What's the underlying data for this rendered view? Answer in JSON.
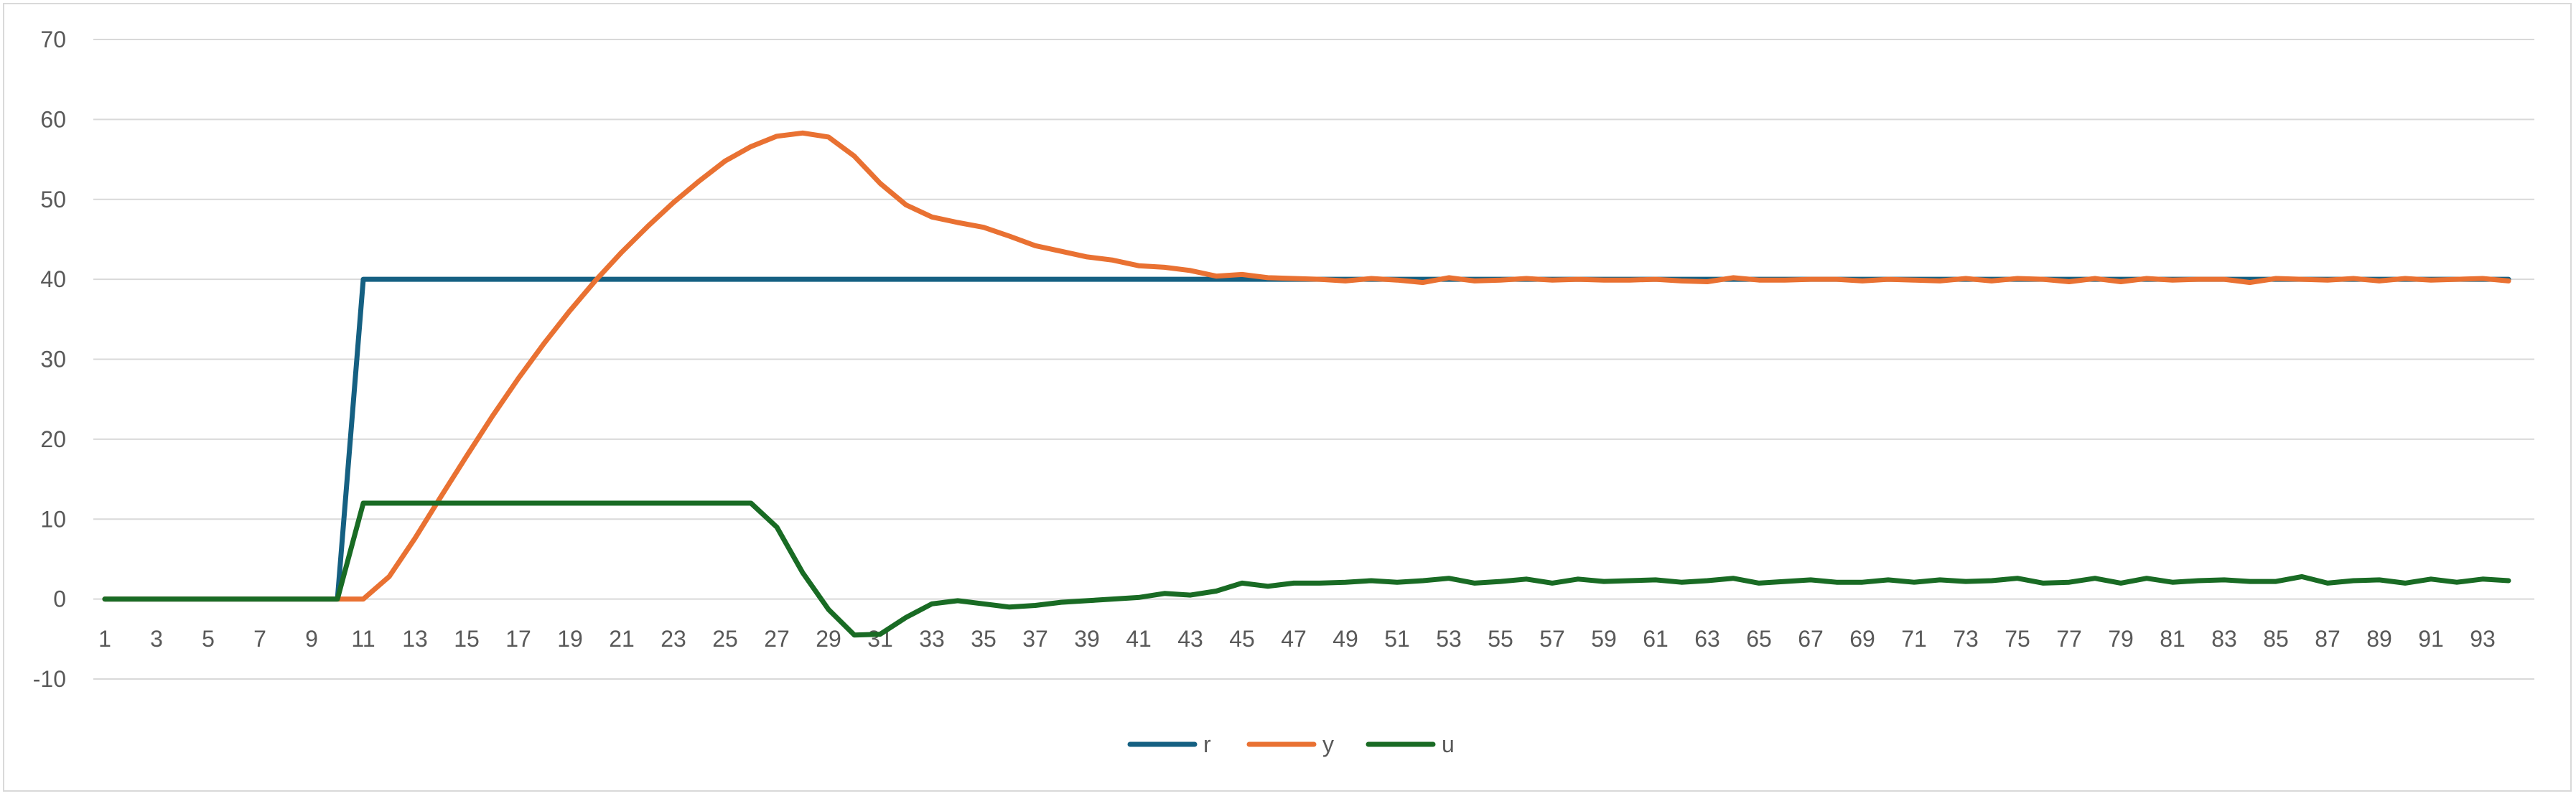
{
  "chart_data": {
    "type": "line",
    "title": "",
    "xlabel": "",
    "ylabel": "",
    "ylim": [
      -10,
      70
    ],
    "y_ticks": [
      -10,
      0,
      10,
      20,
      30,
      40,
      50,
      60,
      70
    ],
    "grid": true,
    "legend_position": "bottom",
    "x": [
      1,
      2,
      3,
      4,
      5,
      6,
      7,
      8,
      9,
      10,
      11,
      12,
      13,
      14,
      15,
      16,
      17,
      18,
      19,
      20,
      21,
      22,
      23,
      24,
      25,
      26,
      27,
      28,
      29,
      30,
      31,
      32,
      33,
      34,
      35,
      36,
      37,
      38,
      39,
      40,
      41,
      42,
      43,
      44,
      45,
      46,
      47,
      48,
      49,
      50,
      51,
      52,
      53,
      54,
      55,
      56,
      57,
      58,
      59,
      60,
      61,
      62,
      63,
      64,
      65,
      66,
      67,
      68,
      69,
      70,
      71,
      72,
      73,
      74,
      75,
      76,
      77,
      78,
      79,
      80,
      81,
      82,
      83,
      84,
      85,
      86,
      87,
      88,
      89,
      90,
      91,
      92,
      93,
      94
    ],
    "x_tick_labels": [
      "1",
      "3",
      "5",
      "7",
      "9",
      "11",
      "13",
      "15",
      "17",
      "19",
      "21",
      "23",
      "25",
      "27",
      "29",
      "31",
      "33",
      "35",
      "37",
      "39",
      "41",
      "43",
      "45",
      "47",
      "49",
      "51",
      "53",
      "55",
      "57",
      "59",
      "61",
      "63",
      "65",
      "67",
      "69",
      "71",
      "73",
      "75",
      "77",
      "79",
      "81",
      "83",
      "85",
      "87",
      "89",
      "91",
      "93"
    ],
    "series": [
      {
        "name": "r",
        "color": "#156082",
        "values": [
          0,
          0,
          0,
          0,
          0,
          0,
          0,
          0,
          0,
          0,
          40,
          40,
          40,
          40,
          40,
          40,
          40,
          40,
          40,
          40,
          40,
          40,
          40,
          40,
          40,
          40,
          40,
          40,
          40,
          40,
          40,
          40,
          40,
          40,
          40,
          40,
          40,
          40,
          40,
          40,
          40,
          40,
          40,
          40,
          40,
          40,
          40,
          40,
          40,
          40,
          40,
          40,
          40,
          40,
          40,
          40,
          40,
          40,
          40,
          40,
          40,
          40,
          40,
          40,
          40,
          40,
          40,
          40,
          40,
          40,
          40,
          40,
          40,
          40,
          40,
          40,
          40,
          40,
          40,
          40,
          40,
          40,
          40,
          40,
          40,
          40,
          40,
          40,
          40,
          40,
          40,
          40,
          40,
          40
        ]
      },
      {
        "name": "y",
        "color": "#E97132",
        "values": [
          0,
          0,
          0,
          0,
          0,
          0,
          0,
          0,
          0,
          0,
          0,
          2.8,
          7.6,
          12.8,
          17.9,
          22.9,
          27.6,
          32,
          36.1,
          39.9,
          43.4,
          46.6,
          49.6,
          52.3,
          54.8,
          56.6,
          57.9,
          58.3,
          57.8,
          55.4,
          52,
          49.3,
          47.8,
          47.1,
          46.5,
          45.4,
          44.2,
          43.5,
          42.8,
          42.4,
          41.7,
          41.5,
          41.1,
          40.4,
          40.6,
          40.2,
          40.1,
          40,
          39.8,
          40.1,
          39.9,
          39.6,
          40.2,
          39.8,
          39.9,
          40.1,
          39.9,
          40,
          39.9,
          39.9,
          40,
          39.8,
          39.7,
          40.2,
          39.9,
          39.9,
          40,
          40,
          39.8,
          40,
          39.9,
          39.8,
          40.1,
          39.8,
          40.1,
          40,
          39.7,
          40.1,
          39.7,
          40.1,
          39.9,
          40,
          40,
          39.6,
          40.1,
          40,
          39.9,
          40.1,
          39.8,
          40.1,
          39.9,
          40,
          40.1,
          39.8
        ]
      },
      {
        "name": "u",
        "color": "#196B24",
        "values": [
          0,
          0,
          0,
          0,
          0,
          0,
          0,
          0,
          0,
          0,
          12,
          12,
          12,
          12,
          12,
          12,
          12,
          12,
          12,
          12,
          12,
          12,
          12,
          12,
          12,
          12,
          9,
          3.3,
          -1.3,
          -4.5,
          -4.4,
          -2.3,
          -0.6,
          -0.2,
          -0.6,
          -1,
          -0.8,
          -0.4,
          -0.2,
          0,
          0.2,
          0.7,
          0.5,
          1,
          2,
          1.6,
          2,
          2,
          2.1,
          2.3,
          2.1,
          2.3,
          2.6,
          2,
          2.2,
          2.5,
          2,
          2.5,
          2.2,
          2.3,
          2.4,
          2.1,
          2.3,
          2.6,
          2,
          2.2,
          2.4,
          2.1,
          2.1,
          2.4,
          2.1,
          2.4,
          2.2,
          2.3,
          2.6,
          2,
          2.1,
          2.6,
          2,
          2.6,
          2.1,
          2.3,
          2.4,
          2.2,
          2.2,
          2.8,
          2,
          2.3,
          2.4,
          2,
          2.5,
          2.1,
          2.5,
          2.3
        ]
      }
    ]
  }
}
